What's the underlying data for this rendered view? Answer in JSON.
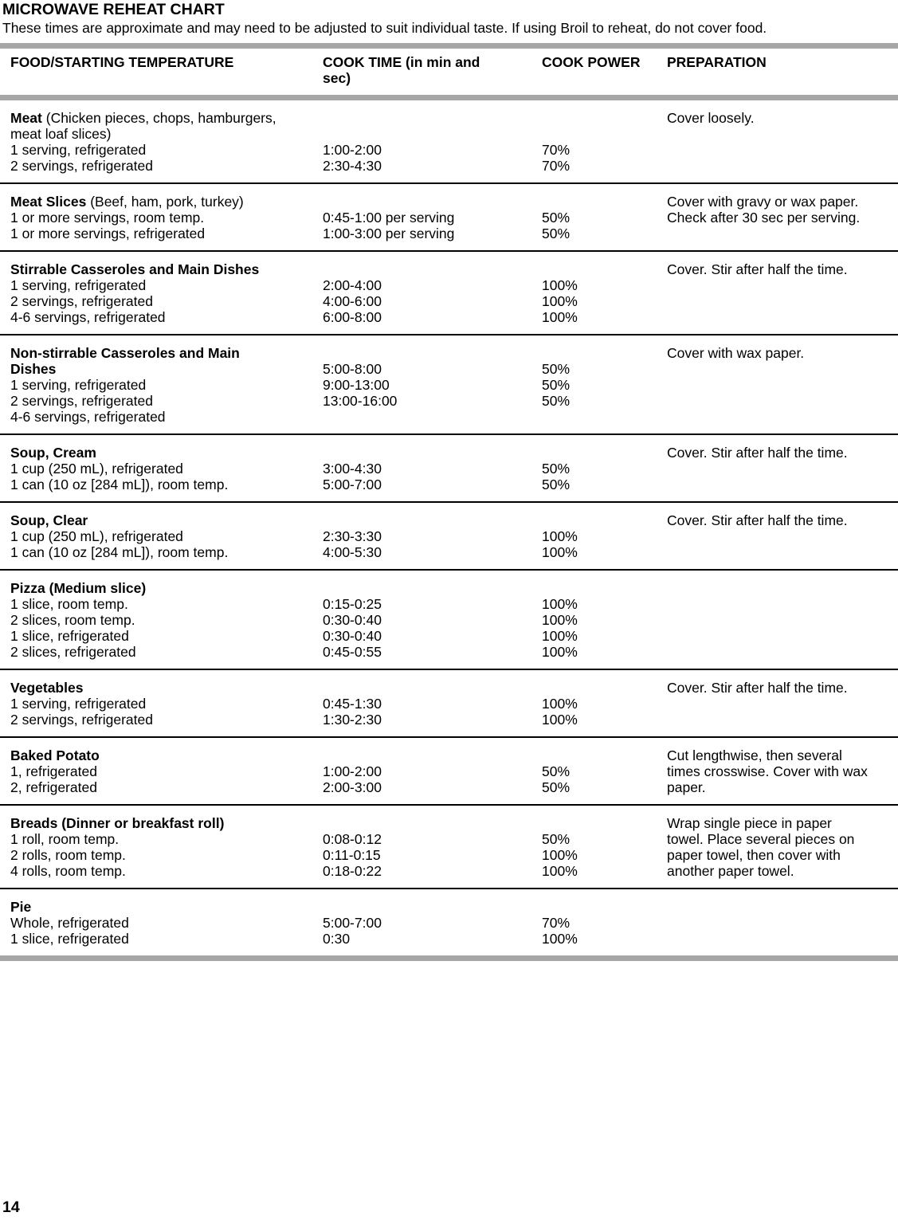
{
  "page": {
    "title": "MICROWAVE REHEAT CHART",
    "intro": "These times are approximate and may need to be adjusted to suit individual taste. If using Broil to reheat, do not cover food.",
    "page_number": "14"
  },
  "colors": {
    "divider_bar": "#a6a6a6",
    "row_rule": "#000000",
    "text": "#000000"
  },
  "table": {
    "headers": [
      {
        "id": "food",
        "lines": [
          "FOOD/STARTING TEMPERATURE"
        ]
      },
      {
        "id": "cook-time",
        "lines": [
          "COOK TIME (in min and",
          "sec)"
        ]
      },
      {
        "id": "cook-power",
        "lines": [
          "COOK POWER"
        ]
      },
      {
        "id": "preparation",
        "lines": [
          "PREPARATION"
        ]
      }
    ],
    "rows": [
      {
        "food": [
          {
            "bold": "Meat",
            "rest": " (Chicken pieces, chops, hamburgers,"
          },
          {
            "bold": "",
            "rest": "meat loaf slices)"
          },
          {
            "bold": "",
            "rest": "1 serving, refrigerated"
          },
          {
            "bold": "",
            "rest": "2 servings, refrigerated"
          }
        ],
        "times": [
          "",
          "",
          "1:00-2:00",
          "2:30-4:30"
        ],
        "powers": [
          "",
          "",
          "70%",
          "70%"
        ],
        "prep": "Cover loosely."
      },
      {
        "food": [
          {
            "bold": "Meat Slices",
            "rest": " (Beef, ham, pork, turkey)"
          },
          {
            "bold": "",
            "rest": "1 or more servings, room temp."
          },
          {
            "bold": "",
            "rest": "1 or more servings, refrigerated"
          }
        ],
        "times": [
          "",
          "0:45-1:00 per serving",
          "1:00-3:00 per serving"
        ],
        "powers": [
          "",
          "50%",
          "50%"
        ],
        "prep": "Cover with gravy or wax paper. Check after 30 sec per serving."
      },
      {
        "food": [
          {
            "bold": "Stirrable Casseroles and Main Dishes",
            "rest": ""
          },
          {
            "bold": "",
            "rest": "1 serving, refrigerated"
          },
          {
            "bold": "",
            "rest": "2 servings, refrigerated"
          },
          {
            "bold": "",
            "rest": "4-6 servings, refrigerated"
          }
        ],
        "times": [
          "",
          "2:00-4:00",
          "4:00-6:00",
          "6:00-8:00"
        ],
        "powers": [
          "",
          "100%",
          "100%",
          "100%"
        ],
        "prep": "Cover. Stir after half the time."
      },
      {
        "food": [
          {
            "bold": "Non-stirrable Casseroles and Main",
            "rest": ""
          },
          {
            "bold": "Dishes",
            "rest": ""
          },
          {
            "bold": "",
            "rest": "1 serving, refrigerated"
          },
          {
            "bold": "",
            "rest": "2 servings, refrigerated"
          },
          {
            "bold": "",
            "rest": "4-6 servings, refrigerated"
          }
        ],
        "times": [
          "",
          "5:00-8:00",
          "9:00-13:00",
          "13:00-16:00"
        ],
        "powers": [
          "",
          "50%",
          "50%",
          "50%"
        ],
        "prep": "Cover with wax paper."
      },
      {
        "food": [
          {
            "bold": "Soup, Cream",
            "rest": ""
          },
          {
            "bold": "",
            "rest": "1 cup (250 mL), refrigerated"
          },
          {
            "bold": "",
            "rest": "1 can (10 oz [284 mL]), room temp."
          }
        ],
        "times": [
          "",
          "3:00-4:30",
          "5:00-7:00"
        ],
        "powers": [
          "",
          "50%",
          "50%"
        ],
        "prep": "Cover. Stir after half the time."
      },
      {
        "food": [
          {
            "bold": "Soup, Clear",
            "rest": ""
          },
          {
            "bold": "",
            "rest": "1 cup (250 mL), refrigerated"
          },
          {
            "bold": "",
            "rest": "1 can (10 oz [284 mL]), room temp."
          }
        ],
        "times": [
          "",
          "2:30-3:30",
          "4:00-5:30"
        ],
        "powers": [
          "",
          "100%",
          "100%"
        ],
        "prep": "Cover. Stir after half the time."
      },
      {
        "food": [
          {
            "bold": "Pizza (Medium slice)",
            "rest": ""
          },
          {
            "bold": "",
            "rest": "1 slice, room temp."
          },
          {
            "bold": "",
            "rest": "2 slices, room temp."
          },
          {
            "bold": "",
            "rest": "1 slice, refrigerated"
          },
          {
            "bold": "",
            "rest": "2 slices, refrigerated"
          }
        ],
        "times": [
          "",
          "0:15-0:25",
          "0:30-0:40",
          "0:30-0:40",
          "0:45-0:55"
        ],
        "powers": [
          "",
          "100%",
          "100%",
          "100%",
          "100%"
        ],
        "prep": ""
      },
      {
        "food": [
          {
            "bold": "Vegetables",
            "rest": ""
          },
          {
            "bold": "",
            "rest": "1 serving, refrigerated"
          },
          {
            "bold": "",
            "rest": "2 servings, refrigerated"
          }
        ],
        "times": [
          "",
          "0:45-1:30",
          "1:30-2:30"
        ],
        "powers": [
          "",
          "100%",
          "100%"
        ],
        "prep": "Cover. Stir after half the time."
      },
      {
        "food": [
          {
            "bold": "Baked Potato",
            "rest": ""
          },
          {
            "bold": "",
            "rest": "1, refrigerated"
          },
          {
            "bold": "",
            "rest": "2, refrigerated"
          }
        ],
        "times": [
          "",
          "1:00-2:00",
          "2:00-3:00"
        ],
        "powers": [
          "",
          "50%",
          "50%"
        ],
        "prep": "Cut lengthwise, then several times crosswise. Cover with wax paper."
      },
      {
        "food": [
          {
            "bold": "Breads (Dinner or breakfast roll)",
            "rest": ""
          },
          {
            "bold": "",
            "rest": "1 roll, room temp."
          },
          {
            "bold": "",
            "rest": "2 rolls, room temp."
          },
          {
            "bold": "",
            "rest": "4 rolls, room temp."
          }
        ],
        "times": [
          "",
          "0:08-0:12",
          "0:11-0:15",
          "0:18-0:22"
        ],
        "powers": [
          "",
          "50%",
          "100%",
          "100%"
        ],
        "prep": "Wrap single piece in paper towel. Place several pieces on paper towel, then cover with another paper towel."
      },
      {
        "food": [
          {
            "bold": "Pie",
            "rest": ""
          },
          {
            "bold": "",
            "rest": "Whole, refrigerated"
          },
          {
            "bold": "",
            "rest": "1 slice, refrigerated"
          }
        ],
        "times": [
          "",
          "5:00-7:00",
          "0:30"
        ],
        "powers": [
          "",
          "70%",
          "100%"
        ],
        "prep": ""
      }
    ]
  }
}
